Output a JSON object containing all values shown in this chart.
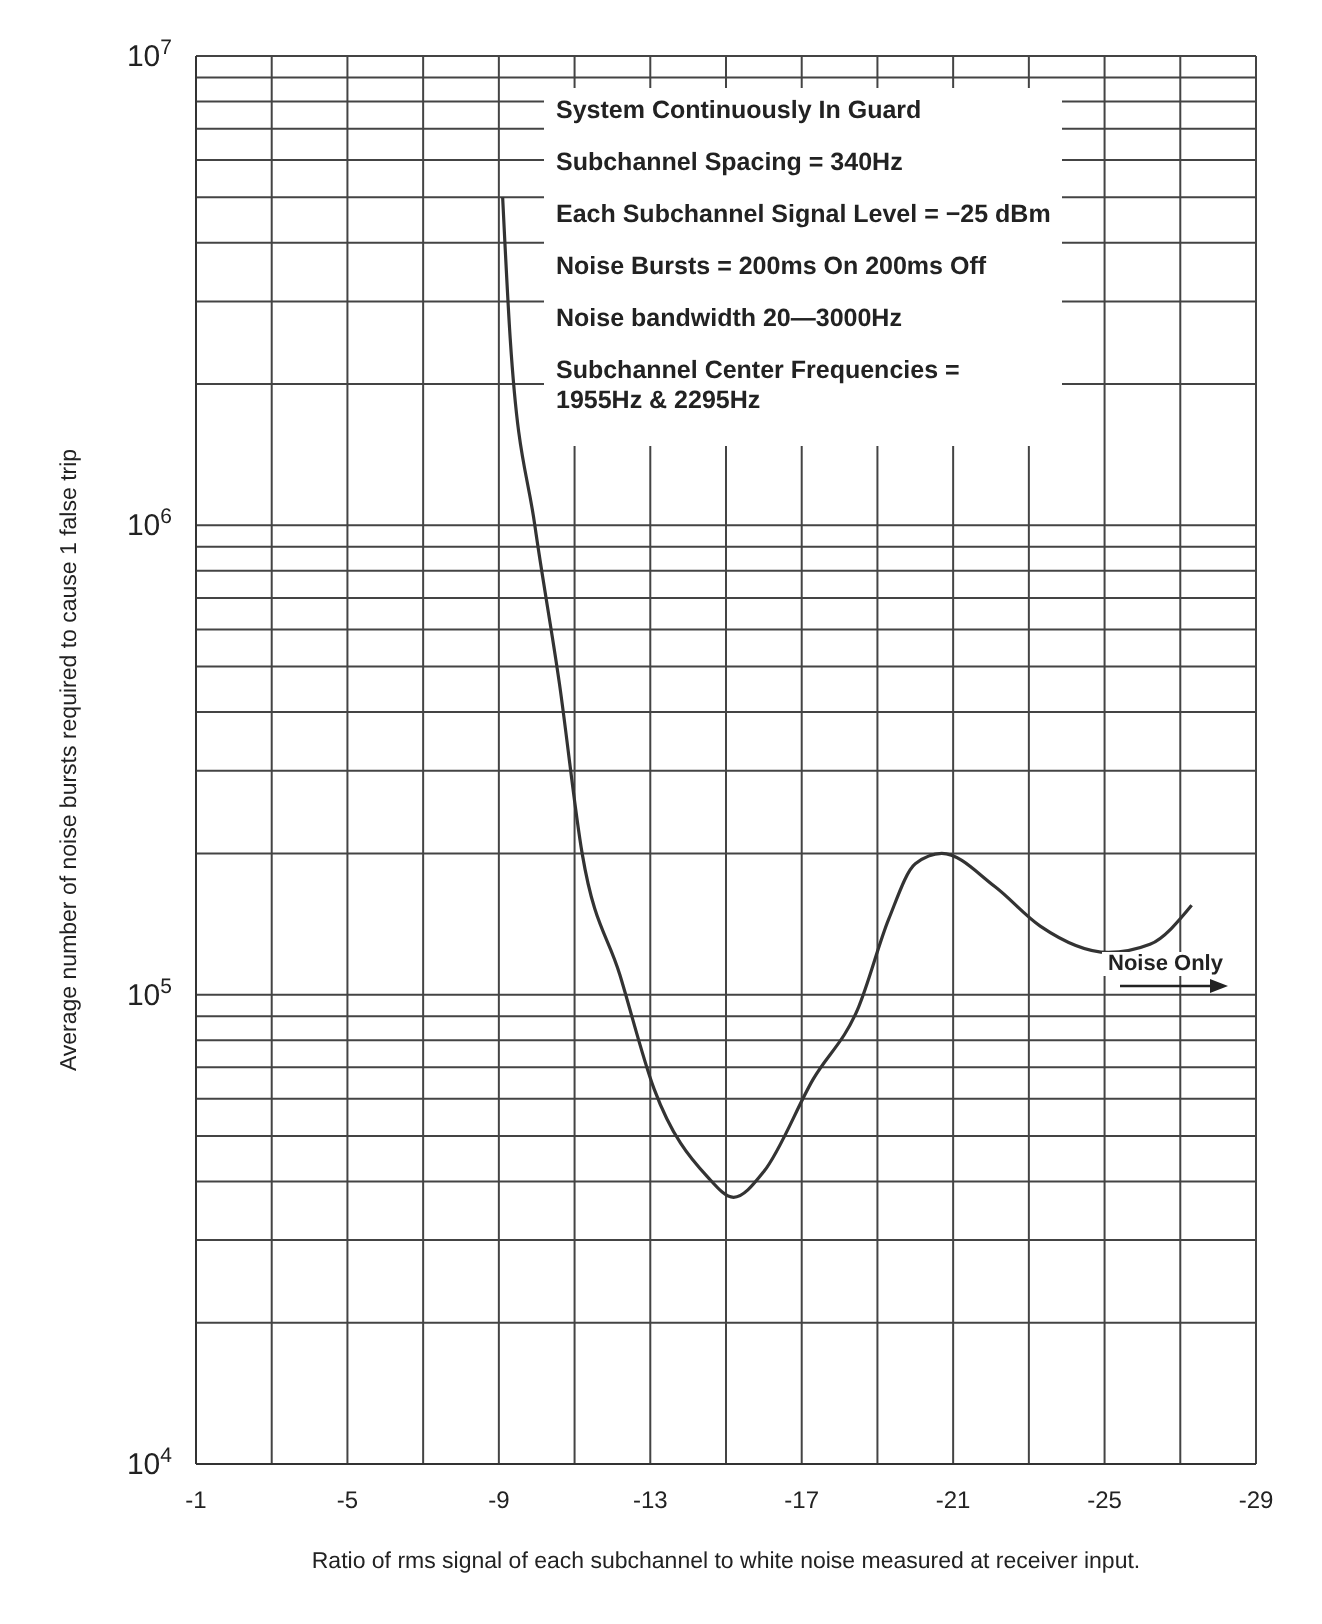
{
  "chart_data": {
    "type": "line",
    "xlabel": "Ratio of rms signal of each subchannel to white noise measured at receiver input.",
    "ylabel": "Average number of noise bursts required to cause 1 false trip",
    "x": [
      -9.1,
      -9.3,
      -9.95,
      -10.6,
      -11.2,
      -12.2,
      -13.1,
      -14.5,
      -15.2,
      -16,
      -17.3,
      -18.5,
      -19.3,
      -20,
      -20.7,
      -22.1,
      -23.3,
      -25.1,
      -26.2,
      -27.3
    ],
    "series": [
      {
        "color": "#333333",
        "values": [
          5000000,
          2500000,
          1000000,
          460000,
          200000,
          110000,
          63000,
          41000,
          37000,
          42000,
          66000,
          94000,
          145000,
          190000,
          200000,
          170000,
          140000,
          123000,
          128000,
          155000
        ]
      }
    ],
    "log": "y",
    "grid": true,
    "marker": "none",
    "line_style": "solid",
    "xlim": [
      -1,
      -29
    ],
    "xticks": [
      -1,
      {
        "value": -3,
        "label": null
      },
      -5,
      {
        "value": -7,
        "label": null
      },
      -9,
      {
        "value": -11,
        "label": null
      },
      -13,
      {
        "value": -15,
        "label": null
      },
      -17,
      {
        "value": -19,
        "label": null
      },
      -21,
      {
        "value": -23,
        "label": null
      },
      -25,
      {
        "value": -27,
        "label": null
      },
      -29
    ],
    "ylim": [
      10000,
      10000000
    ],
    "yticks": [
      {
        "value": 10000,
        "label": "10$^{4}$"
      },
      {
        "value": 20000,
        "label": null
      },
      {
        "value": 30000,
        "label": null
      },
      {
        "value": 40000,
        "label": null
      },
      {
        "value": 50000,
        "label": null
      },
      {
        "value": 60000,
        "label": null
      },
      {
        "value": 70000,
        "label": null
      },
      {
        "value": 80000,
        "label": null
      },
      {
        "value": 90000,
        "label": null
      },
      {
        "value": 100000,
        "label": "10$^{5}$"
      },
      {
        "value": 200000,
        "label": null
      },
      {
        "value": 300000,
        "label": null
      },
      {
        "value": 400000,
        "label": null
      },
      {
        "value": 500000,
        "label": null
      },
      {
        "value": 600000,
        "label": null
      },
      {
        "value": 700000,
        "label": null
      },
      {
        "value": 800000,
        "label": null
      },
      {
        "value": 900000,
        "label": null
      },
      {
        "value": 1000000,
        "label": "10$^{6}$"
      },
      {
        "value": 2000000,
        "label": null
      },
      {
        "value": 3000000,
        "label": null
      },
      {
        "value": 4000000,
        "label": null
      },
      {
        "value": 5000000,
        "label": null
      },
      {
        "value": 6000000,
        "label": null
      },
      {
        "value": 7000000,
        "label": null
      },
      {
        "value": 8000000,
        "label": null
      },
      {
        "value": 9000000,
        "label": null
      },
      {
        "value": 10000000,
        "label": "10$^{7}$"
      }
    ],
    "annotations": [
      "System Continuously In Guard",
      "Subchannel Spacing = 340Hz",
      "Each Subchannel Signal Level = −25 dBm",
      "Noise Bursts = 200ms On 200ms Off",
      "Noise bandwidth 20—3000Hz",
      "Subchannel Center Frequencies =\n1955Hz & 2295Hz",
      "Noise Only"
    ]
  }
}
